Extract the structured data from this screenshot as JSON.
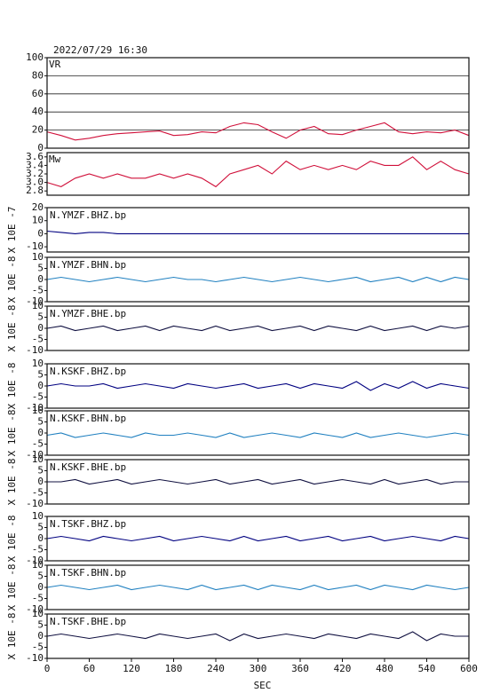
{
  "chart_data": [
    {
      "type": "line",
      "title": "2022/07/29 16:30",
      "label": "VR",
      "xlim": [
        0,
        600
      ],
      "x": [
        0,
        20,
        40,
        60,
        80,
        100,
        120,
        140,
        160,
        180,
        200,
        220,
        240,
        260,
        280,
        300,
        320,
        340,
        360,
        380,
        400,
        420,
        440,
        460,
        480,
        500,
        520,
        540,
        560,
        580,
        600
      ],
      "ylim": [
        0,
        100
      ],
      "yticks": [
        0,
        20,
        40,
        60,
        80,
        100
      ],
      "grid": true,
      "series": [
        {
          "color": "#d0103a",
          "values": [
            18,
            14,
            9,
            11,
            14,
            16,
            17,
            18,
            19,
            14,
            15,
            18,
            17,
            24,
            28,
            26,
            18,
            11,
            20,
            24,
            16,
            15,
            20,
            24,
            28,
            18,
            16,
            18,
            17,
            20,
            14
          ]
        }
      ]
    },
    {
      "type": "line",
      "label": "Mw",
      "xlim": [
        0,
        600
      ],
      "x": [
        0,
        20,
        40,
        60,
        80,
        100,
        120,
        140,
        160,
        180,
        200,
        220,
        240,
        260,
        280,
        300,
        320,
        340,
        360,
        380,
        400,
        420,
        440,
        460,
        480,
        500,
        520,
        540,
        560,
        580,
        600
      ],
      "ylim": [
        2.7,
        3.7
      ],
      "yticks": [
        2.8,
        {
          "value": 3,
          "label": "3.0"
        },
        3.2,
        3.4,
        3.6
      ],
      "grid": false,
      "series": [
        {
          "color": "#d0103a",
          "values": [
            3.0,
            2.9,
            3.1,
            3.2,
            3.1,
            3.2,
            3.1,
            3.1,
            3.2,
            3.1,
            3.2,
            3.1,
            2.9,
            3.2,
            3.3,
            3.4,
            3.2,
            3.5,
            3.3,
            3.4,
            3.3,
            3.4,
            3.3,
            3.5,
            3.4,
            3.4,
            3.6,
            3.3,
            3.5,
            3.3,
            3.2
          ]
        }
      ]
    },
    {
      "type": "line",
      "ylabel": "X 10E -7",
      "xlim": [
        0,
        600
      ],
      "x": [
        0,
        20,
        40,
        60,
        80,
        100,
        120,
        140,
        160,
        180,
        200,
        220,
        240,
        260,
        280,
        300,
        320,
        340,
        360,
        380,
        400,
        420,
        440,
        460,
        480,
        500,
        520,
        540,
        560,
        580,
        600
      ],
      "ylim": [
        -14,
        20
      ],
      "yticks": [
        20,
        10,
        0,
        -10
      ],
      "series": [
        {
          "name": "N.YMZF.BHZ.bp",
          "color": "#000080",
          "values": [
            2,
            1,
            0,
            1,
            1,
            0,
            0,
            0,
            0,
            0,
            0,
            0,
            0,
            0,
            0,
            0,
            0,
            0,
            0,
            0,
            0,
            0,
            0,
            0,
            0,
            0,
            0,
            0,
            0,
            0,
            0
          ]
        }
      ]
    },
    {
      "type": "line",
      "ylabel": "X 10E -8",
      "xlim": [
        0,
        600
      ],
      "x": [
        0,
        20,
        40,
        60,
        80,
        100,
        120,
        140,
        160,
        180,
        200,
        220,
        240,
        260,
        280,
        300,
        320,
        340,
        360,
        380,
        400,
        420,
        440,
        460,
        480,
        500,
        520,
        540,
        560,
        580,
        600
      ],
      "ylim": [
        -10,
        10
      ],
      "yticks": [
        10,
        5,
        0,
        -5,
        -10
      ],
      "series": [
        {
          "name": "N.YMZF.BHN.bp",
          "color": "#2080c0",
          "values": [
            0,
            1,
            0,
            -1,
            0,
            1,
            0,
            -1,
            0,
            1,
            0,
            0,
            -1,
            0,
            1,
            0,
            -1,
            0,
            1,
            0,
            -1,
            0,
            1,
            -1,
            0,
            1,
            -1,
            1,
            -1,
            1,
            0
          ]
        }
      ]
    },
    {
      "type": "line",
      "ylabel": "X 10E -8",
      "xlim": [
        0,
        600
      ],
      "x": [
        0,
        20,
        40,
        60,
        80,
        100,
        120,
        140,
        160,
        180,
        200,
        220,
        240,
        260,
        280,
        300,
        320,
        340,
        360,
        380,
        400,
        420,
        440,
        460,
        480,
        500,
        520,
        540,
        560,
        580,
        600
      ],
      "ylim": [
        -10,
        10
      ],
      "yticks": [
        10,
        5,
        0,
        -5,
        -10
      ],
      "series": [
        {
          "name": "N.YMZF.BHE.bp",
          "color": "#101040",
          "values": [
            0,
            1,
            -1,
            0,
            1,
            -1,
            0,
            1,
            -1,
            1,
            0,
            -1,
            1,
            -1,
            0,
            1,
            -1,
            0,
            1,
            -1,
            1,
            0,
            -1,
            1,
            -1,
            0,
            1,
            -1,
            1,
            0,
            1
          ]
        }
      ]
    },
    {
      "type": "line",
      "ylabel": "X 10E -8",
      "xlim": [
        0,
        600
      ],
      "x": [
        0,
        20,
        40,
        60,
        80,
        100,
        120,
        140,
        160,
        180,
        200,
        220,
        240,
        260,
        280,
        300,
        320,
        340,
        360,
        380,
        400,
        420,
        440,
        460,
        480,
        500,
        520,
        540,
        560,
        580,
        600
      ],
      "ylim": [
        -10,
        10
      ],
      "yticks": [
        10,
        5,
        0,
        -5,
        -10
      ],
      "series": [
        {
          "name": "N.KSKF.BHZ.bp",
          "color": "#000080",
          "values": [
            0,
            1,
            0,
            0,
            1,
            -1,
            0,
            1,
            0,
            -1,
            1,
            0,
            -1,
            0,
            1,
            -1,
            0,
            1,
            -1,
            1,
            0,
            -1,
            2,
            -2,
            1,
            -1,
            2,
            -1,
            1,
            0,
            -1
          ]
        }
      ]
    },
    {
      "type": "line",
      "ylabel": "X 10E -8",
      "xlim": [
        0,
        600
      ],
      "x": [
        0,
        20,
        40,
        60,
        80,
        100,
        120,
        140,
        160,
        180,
        200,
        220,
        240,
        260,
        280,
        300,
        320,
        340,
        360,
        380,
        400,
        420,
        440,
        460,
        480,
        500,
        520,
        540,
        560,
        580,
        600
      ],
      "ylim": [
        -10,
        10
      ],
      "yticks": [
        10,
        5,
        0,
        -5,
        -10
      ],
      "series": [
        {
          "name": "N.KSKF.BHN.bp",
          "color": "#2080c0",
          "values": [
            -1,
            0,
            -2,
            -1,
            0,
            -1,
            -2,
            0,
            -1,
            -1,
            0,
            -1,
            -2,
            0,
            -2,
            -1,
            0,
            -1,
            -2,
            0,
            -1,
            -2,
            0,
            -2,
            -1,
            0,
            -1,
            -2,
            -1,
            0,
            -1
          ]
        }
      ]
    },
    {
      "type": "line",
      "ylabel": "X 10E -8",
      "xlim": [
        0,
        600
      ],
      "x": [
        0,
        20,
        40,
        60,
        80,
        100,
        120,
        140,
        160,
        180,
        200,
        220,
        240,
        260,
        280,
        300,
        320,
        340,
        360,
        380,
        400,
        420,
        440,
        460,
        480,
        500,
        520,
        540,
        560,
        580,
        600
      ],
      "ylim": [
        -10,
        10
      ],
      "yticks": [
        10,
        5,
        0,
        -5,
        -10
      ],
      "series": [
        {
          "name": "N.KSKF.BHE.bp",
          "color": "#101040",
          "values": [
            0,
            0,
            1,
            -1,
            0,
            1,
            -1,
            0,
            1,
            0,
            -1,
            0,
            1,
            -1,
            0,
            1,
            -1,
            0,
            1,
            -1,
            0,
            1,
            0,
            -1,
            1,
            -1,
            0,
            1,
            -1,
            0,
            0
          ]
        }
      ]
    },
    {
      "type": "line",
      "ylabel": "X 10E -8",
      "xlim": [
        0,
        600
      ],
      "x": [
        0,
        20,
        40,
        60,
        80,
        100,
        120,
        140,
        160,
        180,
        200,
        220,
        240,
        260,
        280,
        300,
        320,
        340,
        360,
        380,
        400,
        420,
        440,
        460,
        480,
        500,
        520,
        540,
        560,
        580,
        600
      ],
      "ylim": [
        -10,
        10
      ],
      "yticks": [
        10,
        5,
        0,
        -5,
        -10
      ],
      "series": [
        {
          "name": "N.TSKF.BHZ.bp",
          "color": "#000080",
          "values": [
            0,
            1,
            0,
            -1,
            1,
            0,
            -1,
            0,
            1,
            -1,
            0,
            1,
            0,
            -1,
            1,
            -1,
            0,
            1,
            -1,
            0,
            1,
            -1,
            0,
            1,
            -1,
            0,
            1,
            0,
            -1,
            1,
            0
          ]
        }
      ]
    },
    {
      "type": "line",
      "ylabel": "X 10E -8",
      "xlim": [
        0,
        600
      ],
      "x": [
        0,
        20,
        40,
        60,
        80,
        100,
        120,
        140,
        160,
        180,
        200,
        220,
        240,
        260,
        280,
        300,
        320,
        340,
        360,
        380,
        400,
        420,
        440,
        460,
        480,
        500,
        520,
        540,
        560,
        580,
        600
      ],
      "ylim": [
        -10,
        10
      ],
      "yticks": [
        10,
        5,
        0,
        -5,
        -10
      ],
      "series": [
        {
          "name": "N.TSKF.BHN.bp",
          "color": "#2080c0",
          "values": [
            0,
            1,
            0,
            -1,
            0,
            1,
            -1,
            0,
            1,
            0,
            -1,
            1,
            -1,
            0,
            1,
            -1,
            1,
            0,
            -1,
            1,
            -1,
            0,
            1,
            -1,
            1,
            0,
            -1,
            1,
            0,
            -1,
            0
          ]
        }
      ]
    },
    {
      "type": "line",
      "ylabel": "X 10E -8",
      "xlabel": "SEC",
      "xlim": [
        0,
        600
      ],
      "xticks": [
        0,
        60,
        120,
        180,
        240,
        300,
        360,
        420,
        480,
        540,
        600
      ],
      "x": [
        0,
        20,
        40,
        60,
        80,
        100,
        120,
        140,
        160,
        180,
        200,
        220,
        240,
        260,
        280,
        300,
        320,
        340,
        360,
        380,
        400,
        420,
        440,
        460,
        480,
        500,
        520,
        540,
        560,
        580,
        600
      ],
      "ylim": [
        -10,
        10
      ],
      "yticks": [
        10,
        5,
        0,
        -5,
        -10
      ],
      "series": [
        {
          "name": "N.TSKF.BHE.bp",
          "color": "#101040",
          "values": [
            0,
            1,
            0,
            -1,
            0,
            1,
            0,
            -1,
            1,
            0,
            -1,
            0,
            1,
            -2,
            1,
            -1,
            0,
            1,
            0,
            -1,
            1,
            0,
            -1,
            1,
            0,
            -1,
            2,
            -2,
            1,
            0,
            0
          ]
        }
      ]
    }
  ]
}
